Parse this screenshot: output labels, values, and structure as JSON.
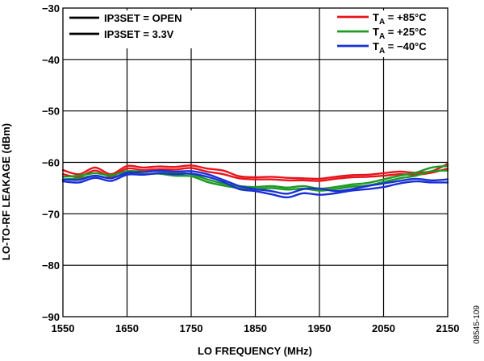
{
  "chart_data": {
    "type": "line",
    "xlabel": "LO FREQUENCY (MHz)",
    "ylabel": "LO-TO-RF LEAKAGE (dBm)",
    "xlim": [
      1550,
      2150
    ],
    "ylim": [
      -90,
      -30
    ],
    "xticks": [
      "1550",
      "1650",
      "1750",
      "1850",
      "1950",
      "2050",
      "2150"
    ],
    "yticks": [
      "−30",
      "−40",
      "−50",
      "−60",
      "−70",
      "−80",
      "−90"
    ],
    "grid": true,
    "linestyle_legend": [
      {
        "label": "IP3SET = OPEN",
        "color": "#000000"
      },
      {
        "label": "IP3SET = 3.3V",
        "color": "#000000"
      }
    ],
    "temperature_legend": [
      {
        "prefix": "T",
        "sub": "A",
        "suffix": " = +85°C",
        "color": "#e8141b"
      },
      {
        "prefix": "T",
        "sub": "A",
        "suffix": " = +25°C",
        "color": "#1b9a24"
      },
      {
        "prefix": "T",
        "sub": "A",
        "suffix": " = −40°C",
        "color": "#1a2fd6"
      }
    ],
    "x": [
      1550,
      1575,
      1600,
      1625,
      1650,
      1675,
      1700,
      1725,
      1750,
      1775,
      1800,
      1825,
      1850,
      1875,
      1900,
      1925,
      1950,
      1975,
      2000,
      2025,
      2050,
      2075,
      2100,
      2125,
      2150
    ],
    "series": [
      {
        "temp": "+85",
        "mode": "OPEN",
        "color": "#e8141b",
        "values": [
          -61.5,
          -62.3,
          -61.0,
          -62.3,
          -60.7,
          -61.0,
          -60.8,
          -60.9,
          -60.6,
          -61.2,
          -61.6,
          -62.7,
          -62.9,
          -62.8,
          -63.0,
          -63.1,
          -63.2,
          -62.8,
          -62.5,
          -62.4,
          -62.1,
          -61.8,
          -62.0,
          -61.7,
          -60.3
        ]
      },
      {
        "temp": "+85",
        "mode": "3.3V",
        "color": "#e8141b",
        "values": [
          -62.3,
          -62.8,
          -61.6,
          -62.7,
          -61.2,
          -61.5,
          -61.3,
          -61.4,
          -61.1,
          -61.8,
          -62.3,
          -63.1,
          -63.3,
          -63.3,
          -63.5,
          -63.5,
          -63.6,
          -63.2,
          -62.9,
          -62.8,
          -62.6,
          -62.3,
          -62.4,
          -62.0,
          -61.2
        ]
      },
      {
        "temp": "+25",
        "mode": "OPEN",
        "color": "#1b9a24",
        "values": [
          -62.8,
          -62.6,
          -62.1,
          -62.5,
          -61.7,
          -61.8,
          -61.7,
          -62.0,
          -62.3,
          -63.3,
          -64.1,
          -64.6,
          -64.8,
          -64.6,
          -64.9,
          -64.6,
          -65.1,
          -64.8,
          -64.3,
          -64.0,
          -63.3,
          -62.6,
          -62.0,
          -61.0,
          -60.7
        ]
      },
      {
        "temp": "+25",
        "mode": "3.3V",
        "color": "#1b9a24",
        "values": [
          -63.3,
          -63.1,
          -62.6,
          -63.0,
          -62.1,
          -62.3,
          -62.2,
          -62.6,
          -62.7,
          -63.8,
          -64.5,
          -65.0,
          -65.2,
          -65.0,
          -65.3,
          -65.1,
          -65.5,
          -65.2,
          -64.7,
          -64.5,
          -63.8,
          -63.1,
          -62.6,
          -61.7,
          -61.6
        ]
      },
      {
        "temp": "-40",
        "mode": "OPEN",
        "color": "#1a2fd6",
        "values": [
          -63.3,
          -63.4,
          -62.6,
          -63.1,
          -62.0,
          -61.9,
          -61.6,
          -61.8,
          -61.7,
          -62.3,
          -63.4,
          -64.6,
          -65.2,
          -65.6,
          -66.1,
          -65.2,
          -65.1,
          -65.6,
          -65.2,
          -64.6,
          -64.1,
          -63.6,
          -63.2,
          -63.5,
          -63.3
        ]
      },
      {
        "temp": "-40",
        "mode": "3.3V",
        "color": "#1a2fd6",
        "values": [
          -63.7,
          -63.9,
          -63.0,
          -63.6,
          -62.4,
          -62.4,
          -62.1,
          -62.3,
          -62.2,
          -62.8,
          -63.8,
          -65.2,
          -65.6,
          -66.2,
          -66.8,
          -66.0,
          -66.3,
          -66.0,
          -65.5,
          -65.2,
          -64.8,
          -64.1,
          -63.7,
          -63.9,
          -63.9
        ]
      }
    ]
  },
  "figure_id": "08545-109"
}
